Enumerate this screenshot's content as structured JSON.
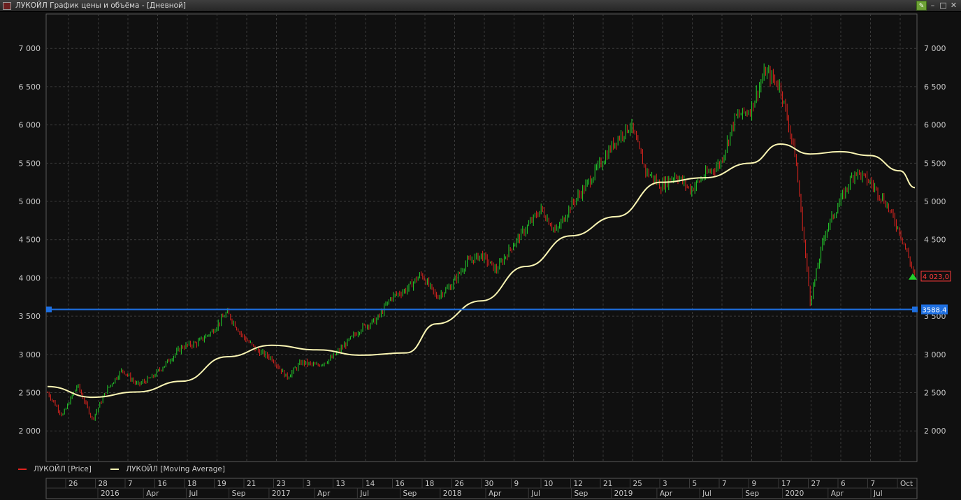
{
  "window": {
    "title": "ЛУКОЙЛ График цены и объёма - [Дневной]"
  },
  "legend": {
    "price_label": "ЛУКОЙЛ [Price]",
    "ma_label": "ЛУКОЙЛ [Moving Average]"
  },
  "colors": {
    "background": "#101010",
    "grid": "#3a3a3a",
    "candle_up": "#23d12c",
    "candle_down": "#e0241f",
    "moving_average": "#fbf6b4",
    "horizontal_line": "#1e6fe0",
    "price_tag": "#ff3b3b"
  },
  "chart_data": {
    "type": "line",
    "y_ticks": [
      "2 000",
      "2 500",
      "3 000",
      "3 500",
      "4 000",
      "4 500",
      "5 000",
      "5 500",
      "6 000",
      "6 500",
      "7 000"
    ],
    "ylim": [
      1600,
      7450
    ],
    "x_day_labels": [
      "26",
      "28",
      "7",
      "16",
      "18",
      "19",
      "21",
      "23",
      "3",
      "13",
      "14",
      "16",
      "18",
      "26",
      "30",
      "9",
      "10",
      "12",
      "21",
      "25",
      "3",
      "5",
      "7",
      "9",
      "17",
      "27",
      "6",
      "7",
      "Oct"
    ],
    "x_period_labels": [
      "2016",
      "Apr",
      "Jul",
      "Sep",
      "2017",
      "Apr",
      "Jul",
      "Sep",
      "2018",
      "Apr",
      "Jul",
      "Sep",
      "2019",
      "Apr",
      "Jul",
      "Sep",
      "2020",
      "Apr",
      "Jul"
    ],
    "grid": true,
    "series": [
      {
        "name": "ЛУКОЙЛ [Price]",
        "kind": "candlestick",
        "x": [
          "2015-12",
          "2016-01",
          "2016-02",
          "2016-03",
          "2016-04",
          "2016-05",
          "2016-06",
          "2016-07",
          "2016-08",
          "2016-09",
          "2016-10",
          "2016-11",
          "2016-12",
          "2017-01",
          "2017-02",
          "2017-03",
          "2017-04",
          "2017-05",
          "2017-06",
          "2017-07",
          "2017-08",
          "2017-09",
          "2017-10",
          "2017-11",
          "2017-12",
          "2018-01",
          "2018-02",
          "2018-03",
          "2018-04",
          "2018-05",
          "2018-06",
          "2018-07",
          "2018-08",
          "2018-09",
          "2018-10",
          "2018-11",
          "2018-12",
          "2019-01",
          "2019-02",
          "2019-03",
          "2019-04",
          "2019-05",
          "2019-06",
          "2019-07",
          "2019-08",
          "2019-09",
          "2019-10",
          "2019-11",
          "2019-12",
          "2020-01",
          "2020-02",
          "2020-03",
          "2020-04",
          "2020-05",
          "2020-06",
          "2020-07",
          "2020-08",
          "2020-09",
          "2020-10"
        ],
        "values": [
          2500,
          2200,
          2600,
          2150,
          2550,
          2800,
          2600,
          2700,
          2900,
          3100,
          3150,
          3300,
          3550,
          3250,
          3050,
          2950,
          2700,
          2900,
          2850,
          2950,
          3150,
          3350,
          3450,
          3750,
          3850,
          4050,
          3750,
          3900,
          4200,
          4300,
          4100,
          4400,
          4650,
          4900,
          4600,
          4950,
          5200,
          5500,
          5800,
          6000,
          5400,
          5200,
          5350,
          5150,
          5350,
          5500,
          6100,
          6200,
          6700,
          6500,
          5600,
          3700,
          4600,
          5000,
          5400,
          5250,
          5000,
          4600,
          4023
        ],
        "last_value_label": "4 023,0"
      },
      {
        "name": "ЛУКОЙЛ [Moving Average]",
        "kind": "line",
        "x": [
          "2015-12",
          "2016-03",
          "2016-06",
          "2016-09",
          "2016-12",
          "2017-03",
          "2017-06",
          "2017-09",
          "2017-12",
          "2018-02",
          "2018-05",
          "2018-08",
          "2018-11",
          "2019-02",
          "2019-05",
          "2019-08",
          "2019-11",
          "2020-01",
          "2020-03",
          "2020-05",
          "2020-07",
          "2020-09",
          "2020-10"
        ],
        "values": [
          2580,
          2440,
          2510,
          2650,
          2970,
          3120,
          3060,
          2990,
          3020,
          3400,
          3700,
          4150,
          4550,
          4800,
          5250,
          5310,
          5500,
          5750,
          5620,
          5650,
          5600,
          5400,
          5180
        ]
      },
      {
        "name": "Horizontal line",
        "kind": "hline",
        "value": 3588.4,
        "value_label": "3588.4"
      }
    ]
  }
}
